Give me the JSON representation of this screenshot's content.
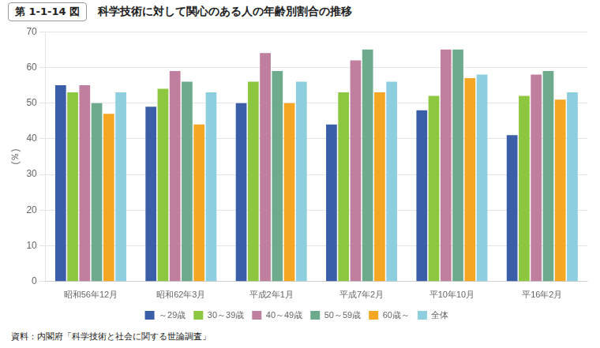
{
  "chart_data": {
    "type": "bar",
    "title": "科学技術に対して関心のある人の年齢別割合の推移",
    "annotations": [
      "第 1-1-14 図",
      "資料：内閣府「科学技術と社会に関する世論調査」"
    ],
    "ylabel": "(％)",
    "categories": [
      "昭和56年12月",
      "昭和62年3月",
      "平成2年1月",
      "平成7年2月",
      "平10年10月",
      "平16年2月"
    ],
    "series": [
      {
        "name": "～29歳",
        "values": [
          55,
          49,
          50,
          44,
          48,
          41
        ],
        "color": "#3a5fa8"
      },
      {
        "name": "30～39歳",
        "values": [
          53,
          54,
          56,
          53,
          52,
          52
        ],
        "color": "#8dc63f"
      },
      {
        "name": "40～49歳",
        "values": [
          55,
          59,
          64,
          62,
          65,
          58
        ],
        "color": "#c07f9e"
      },
      {
        "name": "50～59歳",
        "values": [
          50,
          56,
          59,
          65,
          65,
          59
        ],
        "color": "#6dab8c"
      },
      {
        "name": "60歳～",
        "values": [
          47,
          44,
          50,
          53,
          57,
          51
        ],
        "color": "#f5a623"
      },
      {
        "name": "全体",
        "values": [
          53,
          53,
          56,
          56,
          58,
          53
        ],
        "color": "#8dcfde"
      }
    ],
    "ylim": [
      0,
      70
    ],
    "yticks": [
      0,
      10,
      20,
      30,
      40,
      50,
      60,
      70
    ],
    "grid": true,
    "legend": "bottom"
  }
}
